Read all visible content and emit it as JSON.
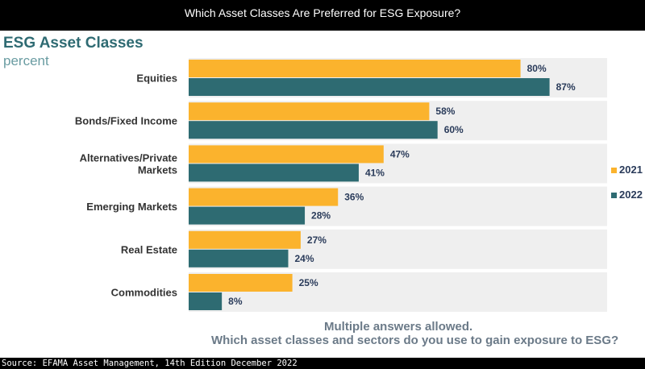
{
  "header": {
    "title": "Which Asset Classes Are Preferred for ESG Exposure?"
  },
  "chart_data": {
    "type": "bar",
    "orientation": "horizontal",
    "title": "ESG Asset Classes",
    "subtitle": "percent",
    "categories": [
      [
        "Equities"
      ],
      [
        "Bonds/Fixed Income"
      ],
      [
        "Alternatives/Private",
        "Markets"
      ],
      [
        "Emerging Markets"
      ],
      [
        "Real Estate"
      ],
      [
        "Commodities"
      ]
    ],
    "series": [
      {
        "name": "2021",
        "color": "#fbb32d",
        "values": [
          80,
          58,
          47,
          36,
          27,
          25
        ]
      },
      {
        "name": "2022",
        "color": "#2e6b72",
        "values": [
          87,
          60,
          41,
          28,
          24,
          8
        ]
      }
    ],
    "value_suffix": "%",
    "xlim": [
      0,
      100
    ],
    "grid": false,
    "legend": "right",
    "notes": [
      "Multiple answers allowed.",
      "Which asset classes and sectors do you use to gain exposure to ESG?"
    ]
  },
  "footer": {
    "source": "Source: EFAMA Asset Management, 14th Edition December 2022"
  }
}
